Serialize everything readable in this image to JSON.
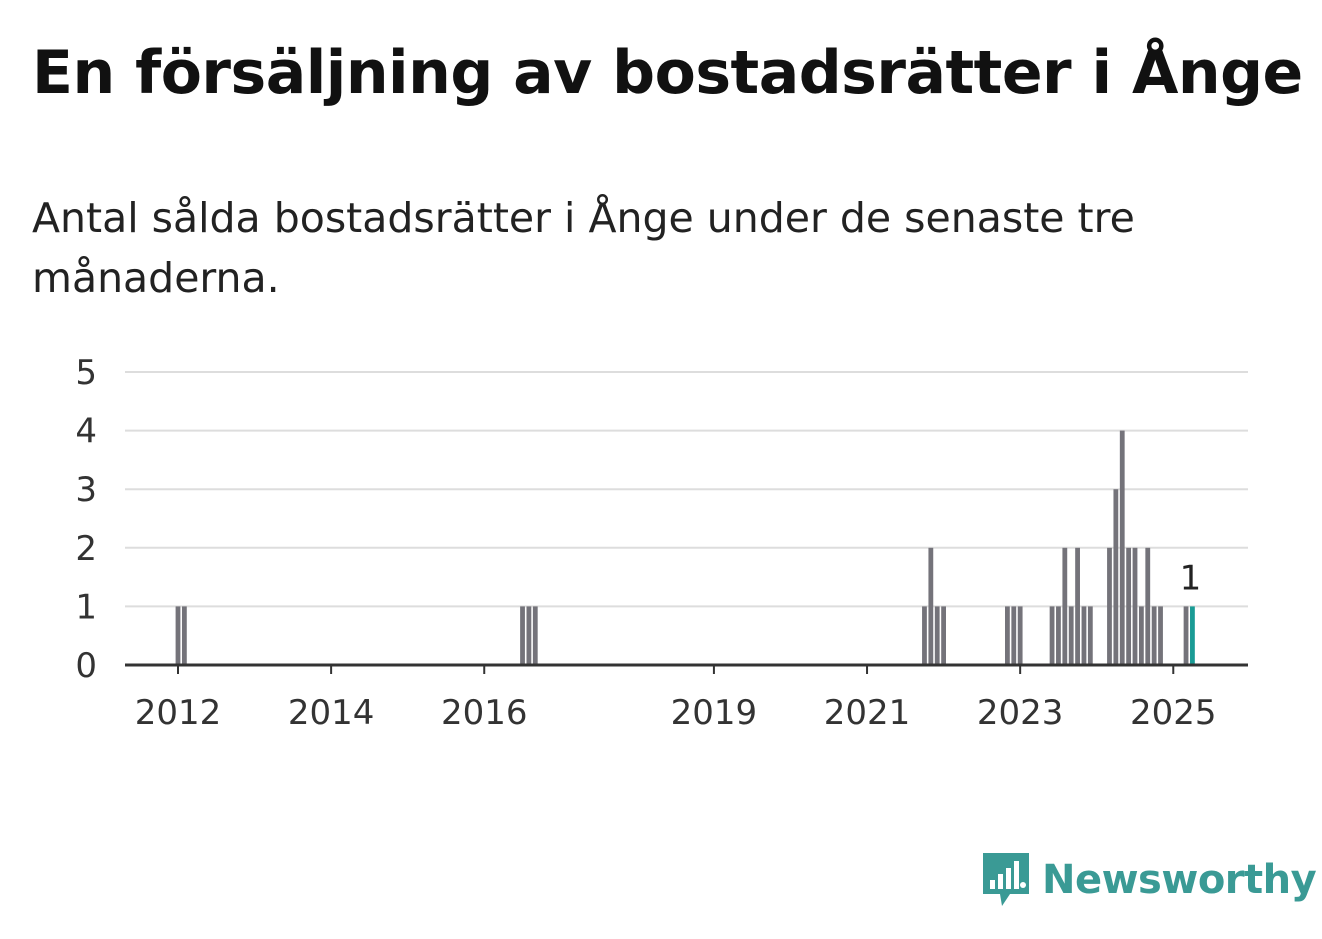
{
  "title": "En försäljning av bostadsrätter i Ånge",
  "subtitle": "Antal sålda bostadsrätter i Ånge under de senaste tre månaderna.",
  "brand": {
    "name": "Newsworthy",
    "color": "#3a9a95",
    "icon": "newsworthy-logo-icon"
  },
  "colors": {
    "bar": "#74737a",
    "highlight": "#1a9b95",
    "grid": "#dddddd",
    "axis": "#333333"
  },
  "chart_data": {
    "type": "bar",
    "title": "",
    "xlabel": "",
    "ylabel": "",
    "ylim": [
      0,
      5
    ],
    "y_ticks": [
      0,
      1,
      2,
      3,
      4,
      5
    ],
    "x_ticks": [
      {
        "label": "2012",
        "date": "2012-01"
      },
      {
        "label": "2014",
        "date": "2014-01"
      },
      {
        "label": "2016",
        "date": "2016-01"
      },
      {
        "label": "2019",
        "date": "2019-01"
      },
      {
        "label": "2021",
        "date": "2021-01"
      },
      {
        "label": "2023",
        "date": "2023-01"
      },
      {
        "label": "2025",
        "date": "2025-01"
      }
    ],
    "grid": true,
    "series": [
      {
        "values": [
          {
            "date": "2012-01",
            "value": 1
          },
          {
            "date": "2012-02",
            "value": 1
          },
          {
            "date": "2016-07",
            "value": 1
          },
          {
            "date": "2016-08",
            "value": 1
          },
          {
            "date": "2016-09",
            "value": 1
          },
          {
            "date": "2021-10",
            "value": 1
          },
          {
            "date": "2021-11",
            "value": 2
          },
          {
            "date": "2021-12",
            "value": 1
          },
          {
            "date": "2022-01",
            "value": 1
          },
          {
            "date": "2022-11",
            "value": 1
          },
          {
            "date": "2022-12",
            "value": 1
          },
          {
            "date": "2023-01",
            "value": 1
          },
          {
            "date": "2023-06",
            "value": 1
          },
          {
            "date": "2023-07",
            "value": 1
          },
          {
            "date": "2023-08",
            "value": 2
          },
          {
            "date": "2023-09",
            "value": 1
          },
          {
            "date": "2023-10",
            "value": 2
          },
          {
            "date": "2023-11",
            "value": 1
          },
          {
            "date": "2023-12",
            "value": 1
          },
          {
            "date": "2024-03",
            "value": 2
          },
          {
            "date": "2024-04",
            "value": 3
          },
          {
            "date": "2024-05",
            "value": 4
          },
          {
            "date": "2024-06",
            "value": 2
          },
          {
            "date": "2024-07",
            "value": 2
          },
          {
            "date": "2024-08",
            "value": 1
          },
          {
            "date": "2024-09",
            "value": 2
          },
          {
            "date": "2024-10",
            "value": 1
          },
          {
            "date": "2024-11",
            "value": 1
          },
          {
            "date": "2025-03",
            "value": 1
          },
          {
            "date": "2025-04",
            "value": 1,
            "highlight": true,
            "label": "1"
          }
        ]
      }
    ]
  }
}
